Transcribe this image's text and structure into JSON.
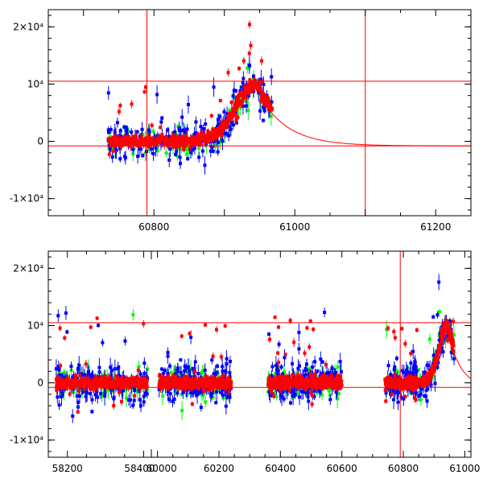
{
  "chart_data": [
    {
      "type": "scatter",
      "title": "",
      "xlabel": "",
      "ylabel": "",
      "xlim": [
        60650,
        61250
      ],
      "ylim": [
        -13000,
        23000
      ],
      "x_ticks": [
        {
          "value": 60800,
          "label": "60800"
        },
        {
          "value": 61000,
          "label": "61000"
        },
        {
          "value": 61200,
          "label": "61200"
        }
      ],
      "y_ticks": [
        {
          "value": -10000,
          "label": "-1×10⁴"
        },
        {
          "value": 0,
          "label": "0"
        },
        {
          "value": 10000,
          "label": "10⁴"
        },
        {
          "value": 20000,
          "label": "2×10⁴"
        }
      ],
      "hlines": [
        10500,
        -800
      ],
      "vlines": [
        60790,
        61100
      ],
      "series": [
        {
          "name": "red",
          "color": "#ff0000",
          "x_range": [
            60735,
            60968
          ],
          "scatter": 500
        },
        {
          "name": "blue",
          "color": "#0000ff",
          "x_range": [
            60740,
            60965
          ],
          "scatter": 1600
        },
        {
          "name": "green",
          "color": "#00ff00",
          "x_range": [
            60740,
            60965
          ],
          "scatter": 1200
        }
      ],
      "model": {
        "color": "#ff0000",
        "peak_x": 60945,
        "peak_y": 10000,
        "rise_tau": 40,
        "decay_tau": 40
      }
    },
    {
      "type": "scatter",
      "title": "",
      "xlabel": "",
      "ylabel": "",
      "segments": [
        {
          "xlim": [
            58150,
            58420
          ]
        },
        {
          "xlim": [
            59980,
            61020
          ]
        }
      ],
      "ylim": [
        -13000,
        23000
      ],
      "x_ticks": [
        {
          "value": 58200,
          "label": "58200",
          "segment": 0
        },
        {
          "value": 58400,
          "label": "58400",
          "segment": 0
        },
        {
          "value": 60000,
          "label": "60000",
          "segment": 1
        },
        {
          "value": 60200,
          "label": "60200",
          "segment": 1
        },
        {
          "value": 60400,
          "label": "60400",
          "segment": 1
        },
        {
          "value": 60600,
          "label": "60600",
          "segment": 1
        },
        {
          "value": 60800,
          "label": "60800",
          "segment": 1
        },
        {
          "value": 61000,
          "label": "61000",
          "segment": 1
        }
      ],
      "y_ticks": [
        {
          "value": -10000,
          "label": "-1×10⁴"
        },
        {
          "value": 0,
          "label": "0"
        },
        {
          "value": 10000,
          "label": "10⁴"
        },
        {
          "value": 20000,
          "label": "2×10⁴"
        }
      ],
      "hlines": [
        10500,
        -800
      ],
      "vlines": [
        60790
      ],
      "seasons": [
        [
          58170,
          58410
        ],
        [
          60005,
          60240
        ],
        [
          60360,
          60600
        ],
        [
          60740,
          60965
        ]
      ],
      "series": [
        {
          "name": "red",
          "color": "#ff0000",
          "scatter": 500
        },
        {
          "name": "blue",
          "color": "#0000ff",
          "scatter": 1600
        },
        {
          "name": "green",
          "color": "#00ff00",
          "scatter": 1200
        }
      ],
      "model": {
        "color": "#ff0000",
        "peak_x": 60945,
        "peak_y": 10000,
        "rise_tau": 40,
        "decay_tau": 40
      }
    }
  ]
}
